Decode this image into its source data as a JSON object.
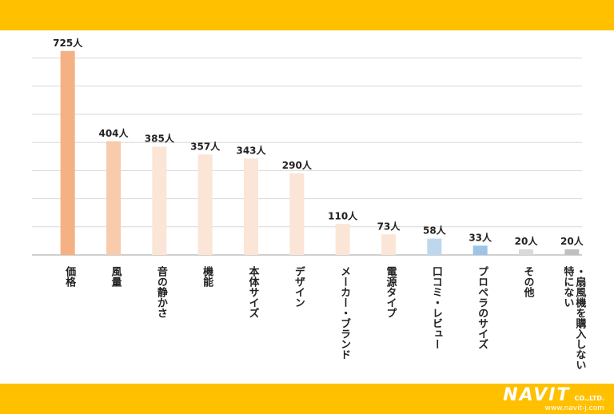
{
  "colors": {
    "band": "#ffc000",
    "grid": "#d9d9d9",
    "axis": "#bfbfbf"
  },
  "logo": {
    "brand": "NAVIT",
    "suffix": "CO.,LTD.",
    "url": "www.navit-j.com"
  },
  "chart_data": {
    "type": "bar",
    "title": "",
    "xlabel": "",
    "ylabel": "",
    "ylim": [
      0,
      750
    ],
    "grid": true,
    "value_suffix": "人",
    "categories": [
      "価格",
      "風量",
      "音の静かさ",
      "機能",
      "本体サイズ",
      "デザイン",
      "メーカー・ブランド",
      "電源タイプ",
      "口コミ・レビュー",
      "プロペラのサイズ",
      "その他",
      "特にない・扇風機を購入しない"
    ],
    "category_lines": [
      [
        "価格"
      ],
      [
        "風量"
      ],
      [
        "音の静かさ"
      ],
      [
        "機能"
      ],
      [
        "本体サイズ"
      ],
      [
        "デザイン"
      ],
      [
        "メーカー・ブランド"
      ],
      [
        "電源タイプ"
      ],
      [
        "口コミ・レビュー"
      ],
      [
        "プロペラのサイズ"
      ],
      [
        "その他"
      ],
      [
        "特にない",
        "・扇風機を購入しない"
      ]
    ],
    "values": [
      725,
      404,
      385,
      357,
      343,
      290,
      110,
      73,
      58,
      33,
      20,
      20
    ],
    "bar_colors": [
      "#f4b183",
      "#f8cbad",
      "#fbe5d6",
      "#fbe5d6",
      "#fbe5d6",
      "#fbe5d6",
      "#fbe5d6",
      "#fbe5d6",
      "#bdd7ee",
      "#9dc3e6",
      "#d9d9d9",
      "#bfbfbf"
    ]
  }
}
